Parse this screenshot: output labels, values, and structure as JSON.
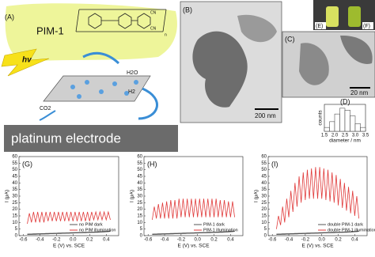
{
  "panels": {
    "a": "(A)",
    "b": "(B)",
    "c": "(C)",
    "e": "(E)",
    "f": "(F)"
  },
  "diagram": {
    "polymer": "PIM-1",
    "light": "hv",
    "water": "H2O",
    "hydrogen": "H2",
    "co2": "CO2",
    "cn_top": "CN",
    "cn_bottom": "CN",
    "repeat": "n",
    "electrode": "platinum electrode"
  },
  "scale_bars": {
    "b": "200 nm",
    "c": "20 nm"
  },
  "chart_data": [
    {
      "type": "histogram",
      "label": "(D)",
      "xlabel": "diameter / nm",
      "ylabel": "counts",
      "bins": [
        1.5,
        1.75,
        2,
        2.25,
        2.5,
        2.75,
        3,
        3.25,
        3.5
      ],
      "counts": [
        2,
        5,
        9,
        12,
        11,
        8,
        4,
        2
      ],
      "color": "#ffffff",
      "xlim": [
        1.5,
        3.5
      ],
      "ylim": [
        0,
        14
      ],
      "xticks": [
        1.5,
        {
          "value": 2,
          "label": "2.0"
        },
        2.5,
        {
          "value": 3,
          "label": "3.0"
        },
        3.5
      ]
    },
    {
      "type": "line",
      "label": "(G)",
      "xlabel": "E (V) vs. SCE",
      "ylabel": "I (μA)",
      "xlim": [
        -0.65,
        0.55
      ],
      "ylim": [
        0,
        60
      ],
      "xticks": [
        -0.6,
        -0.4,
        -0.2,
        {
          "value": 0,
          "label": "0.0"
        },
        0.2,
        0.4
      ],
      "yticks": [
        0,
        5,
        10,
        15,
        20,
        25,
        30,
        35,
        40,
        45,
        50,
        55,
        60
      ],
      "x": [
        -0.55,
        -0.525,
        -0.5,
        -0.475,
        -0.45,
        -0.425,
        -0.4,
        -0.375,
        -0.35,
        -0.325,
        -0.3,
        -0.275,
        -0.25,
        -0.225,
        -0.2,
        -0.175,
        -0.15,
        -0.125,
        -0.1,
        -0.075,
        -0.05,
        -0.025,
        0,
        0.025,
        0.05,
        0.075,
        0.1,
        0.125,
        0.15,
        0.175,
        0.2,
        0.225,
        0.25,
        0.275,
        0.3,
        0.325,
        0.35,
        0.375,
        0.4,
        0.425,
        0.45
      ],
      "series": [
        {
          "name": "no PIM dark",
          "color": "#555555",
          "values": [
            1,
            1.1,
            1.1,
            1.2,
            1.2,
            1.3,
            1.3,
            1.4,
            1.4,
            1.5,
            1.5,
            1.6,
            1.6,
            1.7,
            1.7,
            1.8,
            1.8,
            1.9,
            1.9,
            2,
            2,
            2.1,
            2.1,
            2.2,
            2.2,
            2.3,
            2.3,
            2.4,
            2.4,
            2.5,
            2.5,
            2.6,
            2.6,
            2.7,
            2.7,
            2.8,
            2.9,
            3,
            3.1,
            3.2,
            3.4
          ]
        },
        {
          "name": "no PIM illumination",
          "color": "#e03a3a",
          "values": [
            9,
            17,
            10,
            18,
            10,
            18,
            10,
            18,
            10,
            18,
            11,
            18,
            11,
            18,
            11,
            18,
            11,
            18,
            11,
            18,
            11,
            18,
            11,
            18,
            11,
            18,
            11,
            18,
            11,
            18,
            11,
            18,
            12,
            18,
            12,
            18,
            12,
            18,
            12,
            18,
            12
          ]
        }
      ]
    },
    {
      "type": "line",
      "label": "(H)",
      "xlabel": "E (V) vs. SCE",
      "ylabel": "I (μA)",
      "xlim": [
        -0.65,
        0.55
      ],
      "ylim": [
        0,
        60
      ],
      "xticks": [
        -0.6,
        -0.4,
        -0.2,
        {
          "value": 0,
          "label": "0.0"
        },
        0.2,
        0.4
      ],
      "yticks": [
        0,
        5,
        10,
        15,
        20,
        25,
        30,
        35,
        40,
        45,
        50,
        55,
        60
      ],
      "x": [
        -0.55,
        -0.525,
        -0.5,
        -0.475,
        -0.45,
        -0.425,
        -0.4,
        -0.375,
        -0.35,
        -0.325,
        -0.3,
        -0.275,
        -0.25,
        -0.225,
        -0.2,
        -0.175,
        -0.15,
        -0.125,
        -0.1,
        -0.075,
        -0.05,
        -0.025,
        0,
        0.025,
        0.05,
        0.075,
        0.1,
        0.125,
        0.15,
        0.175,
        0.2,
        0.225,
        0.25,
        0.275,
        0.3,
        0.325,
        0.35,
        0.375,
        0.4,
        0.425,
        0.45
      ],
      "series": [
        {
          "name": "PIM-1 dark",
          "color": "#555555",
          "values": [
            1,
            1.1,
            1.1,
            1.2,
            1.2,
            1.3,
            1.3,
            1.4,
            1.4,
            1.5,
            1.5,
            1.6,
            1.6,
            1.7,
            1.7,
            1.8,
            1.8,
            1.9,
            1.9,
            2,
            2,
            2.1,
            2.1,
            2.2,
            2.2,
            2.3,
            2.3,
            2.4,
            2.4,
            2.5,
            2.5,
            2.6,
            2.6,
            2.7,
            2.7,
            2.8,
            2.9,
            3,
            3.1,
            3.2,
            3.4
          ]
        },
        {
          "name": "PIM-1 illumination",
          "color": "#e03a3a",
          "values": [
            12,
            22,
            13,
            24,
            13,
            25,
            13,
            26,
            13,
            27,
            13,
            27,
            13,
            28,
            14,
            28,
            14,
            28,
            14,
            28,
            14,
            28,
            14,
            28,
            14,
            28,
            14,
            28,
            14,
            28,
            14,
            28,
            14,
            27,
            14,
            27,
            14,
            26,
            14,
            26,
            14
          ]
        }
      ]
    },
    {
      "type": "line",
      "label": "(I)",
      "xlabel": "E (V) vs. SCE",
      "ylabel": "I (μA)",
      "xlim": [
        -0.65,
        0.55
      ],
      "ylim": [
        0,
        60
      ],
      "xticks": [
        -0.6,
        -0.4,
        -0.2,
        {
          "value": 0,
          "label": "0.0"
        },
        0.2,
        0.4
      ],
      "yticks": [
        0,
        5,
        10,
        15,
        20,
        25,
        30,
        35,
        40,
        45,
        50,
        55,
        60
      ],
      "x": [
        -0.55,
        -0.525,
        -0.5,
        -0.475,
        -0.45,
        -0.425,
        -0.4,
        -0.375,
        -0.35,
        -0.325,
        -0.3,
        -0.275,
        -0.25,
        -0.225,
        -0.2,
        -0.175,
        -0.15,
        -0.125,
        -0.1,
        -0.075,
        -0.05,
        -0.025,
        0,
        0.025,
        0.05,
        0.075,
        0.1,
        0.125,
        0.15,
        0.175,
        0.2,
        0.225,
        0.25,
        0.275,
        0.3,
        0.325,
        0.35,
        0.375,
        0.4,
        0.425,
        0.45
      ],
      "series": [
        {
          "name": "double PIM-1 dark",
          "color": "#555555",
          "values": [
            1,
            1.1,
            1.1,
            1.2,
            1.2,
            1.3,
            1.3,
            1.4,
            1.4,
            1.5,
            1.5,
            1.6,
            1.6,
            1.7,
            1.7,
            1.8,
            1.8,
            1.9,
            1.9,
            2,
            2,
            2.1,
            2.1,
            2.2,
            2.2,
            2.3,
            2.3,
            2.4,
            2.4,
            2.5,
            2.5,
            2.6,
            2.6,
            2.7,
            2.7,
            2.8,
            2.9,
            3,
            3.1,
            3.2,
            3.4
          ]
        },
        {
          "name": "double PIM-1 illumination",
          "color": "#e03a3a",
          "values": [
            5,
            15,
            8,
            22,
            10,
            28,
            14,
            34,
            18,
            40,
            22,
            45,
            25,
            48,
            27,
            50,
            28,
            51,
            28,
            52,
            28,
            52,
            28,
            51,
            27,
            50,
            26,
            48,
            25,
            46,
            23,
            43,
            21,
            40,
            19,
            37,
            17,
            34,
            15,
            30,
            13
          ]
        }
      ]
    }
  ]
}
